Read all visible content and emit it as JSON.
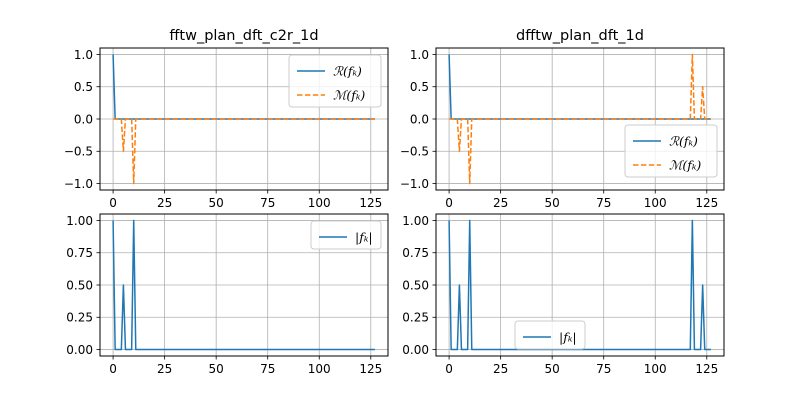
{
  "colors": {
    "real": "#1f77b4",
    "imag": "#ff7f0e",
    "grid": "#b0b0b0"
  },
  "chart_data": [
    {
      "type": "line",
      "title": "fftw_plan_dft_c2r_1d",
      "xlim": [
        -6.35,
        133.35
      ],
      "ylim": [
        -1.1,
        1.1
      ],
      "xticks": [
        0,
        25,
        50,
        75,
        100,
        125
      ],
      "yticks": [
        -1.0,
        -0.5,
        0.0,
        0.5,
        1.0
      ],
      "ytick_labels": [
        "−1.0",
        "−0.5",
        "0.0",
        "0.5",
        "1.0"
      ],
      "grid": true,
      "legend_placement": "upper-right",
      "series": [
        {
          "name": "R(f_k)",
          "legend_label": "ℛ(fₖ)",
          "style": "solid",
          "color": "#1f77b4",
          "points": [
            [
              0,
              1
            ],
            [
              1,
              0
            ],
            [
              127,
              0
            ]
          ]
        },
        {
          "name": "M(f_k)",
          "legend_label": "ℳ(fₖ)",
          "style": "dashed",
          "color": "#ff7f0e",
          "points": [
            [
              0,
              0
            ],
            [
              4,
              0
            ],
            [
              5,
              -0.5
            ],
            [
              6,
              0
            ],
            [
              9,
              0
            ],
            [
              10,
              -1
            ],
            [
              11,
              0
            ],
            [
              127,
              0
            ]
          ]
        }
      ]
    },
    {
      "type": "line",
      "title": "dfftw_plan_dft_1d",
      "xlim": [
        -6.35,
        133.35
      ],
      "ylim": [
        -1.1,
        1.1
      ],
      "xticks": [
        0,
        25,
        50,
        75,
        100,
        125
      ],
      "yticks": [
        -1.0,
        -0.5,
        0.0,
        0.5,
        1.0
      ],
      "ytick_labels": [
        "−1.0",
        "−0.5",
        "0.0",
        "0.5",
        "1.0"
      ],
      "grid": true,
      "legend_placement": "center-right",
      "series": [
        {
          "name": "R(f_k)",
          "legend_label": "ℛ(fₖ)",
          "style": "solid",
          "color": "#1f77b4",
          "points": [
            [
              0,
              1
            ],
            [
              1,
              0
            ],
            [
              127,
              0
            ]
          ]
        },
        {
          "name": "M(f_k)",
          "legend_label": "ℳ(fₖ)",
          "style": "dashed",
          "color": "#ff7f0e",
          "points": [
            [
              0,
              0
            ],
            [
              4,
              0
            ],
            [
              5,
              -0.5
            ],
            [
              6,
              0
            ],
            [
              9,
              0
            ],
            [
              10,
              -1
            ],
            [
              11,
              0
            ],
            [
              117,
              0
            ],
            [
              118,
              1
            ],
            [
              119,
              0
            ],
            [
              122,
              0
            ],
            [
              123,
              0.5
            ],
            [
              124,
              0
            ],
            [
              127,
              0
            ]
          ]
        }
      ]
    },
    {
      "type": "line",
      "title": "",
      "xlim": [
        -6.35,
        133.35
      ],
      "ylim": [
        -0.05,
        1.05
      ],
      "xticks": [
        0,
        25,
        50,
        75,
        100,
        125
      ],
      "yticks": [
        0.0,
        0.25,
        0.5,
        0.75,
        1.0
      ],
      "ytick_labels": [
        "0.00",
        "0.25",
        "0.50",
        "0.75",
        "1.00"
      ],
      "grid": true,
      "legend_placement": "upper-right",
      "series": [
        {
          "name": "|f_k|",
          "legend_label": "|fₖ|",
          "style": "solid",
          "color": "#1f77b4",
          "points": [
            [
              0,
              1
            ],
            [
              1,
              0
            ],
            [
              4,
              0
            ],
            [
              5,
              0.5
            ],
            [
              6,
              0
            ],
            [
              9,
              0
            ],
            [
              10,
              1
            ],
            [
              11,
              0
            ],
            [
              127,
              0
            ]
          ]
        }
      ]
    },
    {
      "type": "line",
      "title": "",
      "xlim": [
        -6.35,
        133.35
      ],
      "ylim": [
        -0.05,
        1.05
      ],
      "xticks": [
        0,
        25,
        50,
        75,
        100,
        125
      ],
      "yticks": [
        0.0,
        0.25,
        0.5,
        0.75,
        1.0
      ],
      "ytick_labels": [
        "0.00",
        "0.25",
        "0.50",
        "0.75",
        "1.00"
      ],
      "grid": true,
      "legend_placement": "lower-center",
      "series": [
        {
          "name": "|f_k|",
          "legend_label": "|fₖ|",
          "style": "solid",
          "color": "#1f77b4",
          "points": [
            [
              0,
              1
            ],
            [
              1,
              0
            ],
            [
              4,
              0
            ],
            [
              5,
              0.5
            ],
            [
              6,
              0
            ],
            [
              9,
              0
            ],
            [
              10,
              1
            ],
            [
              11,
              0
            ],
            [
              117,
              0
            ],
            [
              118,
              1
            ],
            [
              119,
              0
            ],
            [
              122,
              0
            ],
            [
              123,
              0.5
            ],
            [
              124,
              0
            ],
            [
              127,
              0
            ]
          ]
        }
      ]
    }
  ]
}
